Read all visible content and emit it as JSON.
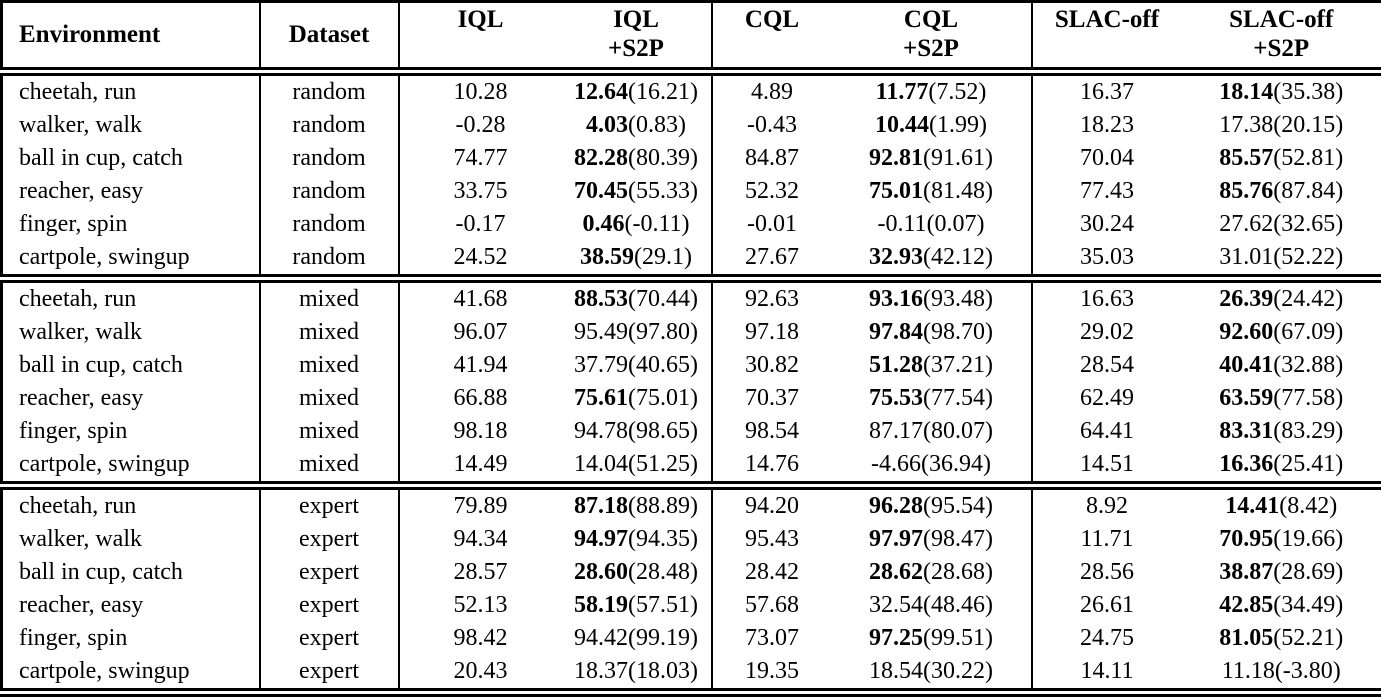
{
  "colors": {
    "text": "#000000",
    "background": "#ffffff",
    "border": "#000000"
  },
  "table": {
    "headers": {
      "environment": "Environment",
      "dataset": "Dataset",
      "iql": {
        "line1": "IQL",
        "line2": ""
      },
      "iql_s2p": {
        "line1": "IQL",
        "line2": "+S2P"
      },
      "cql": {
        "line1": "CQL",
        "line2": ""
      },
      "cql_s2p": {
        "line1": "CQL",
        "line2": "+S2P"
      },
      "slac": {
        "line1": "SLAC-off",
        "line2": ""
      },
      "slac_s2p": {
        "line1": "SLAC-off",
        "line2": "+S2P"
      }
    },
    "rows": [
      {
        "env": "cheetah, run",
        "dataset": "random",
        "iql": "10.28",
        "iql_s2p": {
          "value": "12.64",
          "paren": "(16.21)",
          "bold": true
        },
        "cql": "4.89",
        "cql_s2p": {
          "value": "11.77",
          "paren": "(7.52)",
          "bold": true
        },
        "slac": "16.37",
        "slac_s2p": {
          "value": "18.14",
          "paren": "(35.38)",
          "bold": true
        },
        "block_end": false
      },
      {
        "env": "walker, walk",
        "dataset": "random",
        "iql": "-0.28",
        "iql_s2p": {
          "value": "4.03",
          "paren": "(0.83)",
          "bold": true
        },
        "cql": "-0.43",
        "cql_s2p": {
          "value": "10.44",
          "paren": "(1.99)",
          "bold": true
        },
        "slac": "18.23",
        "slac_s2p": {
          "value": "17.38",
          "paren": "(20.15)",
          "bold": false
        },
        "block_end": false
      },
      {
        "env": "ball in cup, catch",
        "dataset": "random",
        "iql": "74.77",
        "iql_s2p": {
          "value": "82.28",
          "paren": "(80.39)",
          "bold": true
        },
        "cql": "84.87",
        "cql_s2p": {
          "value": "92.81",
          "paren": "(91.61)",
          "bold": true
        },
        "slac": "70.04",
        "slac_s2p": {
          "value": "85.57",
          "paren": "(52.81)",
          "bold": true
        },
        "block_end": false
      },
      {
        "env": "reacher, easy",
        "dataset": "random",
        "iql": "33.75",
        "iql_s2p": {
          "value": "70.45",
          "paren": "(55.33)",
          "bold": true
        },
        "cql": "52.32",
        "cql_s2p": {
          "value": "75.01",
          "paren": "(81.48)",
          "bold": true
        },
        "slac": "77.43",
        "slac_s2p": {
          "value": "85.76",
          "paren": "(87.84)",
          "bold": true
        },
        "block_end": false
      },
      {
        "env": "finger, spin",
        "dataset": "random",
        "iql": "-0.17",
        "iql_s2p": {
          "value": "0.46",
          "paren": "(-0.11)",
          "bold": true
        },
        "cql": "-0.01",
        "cql_s2p": {
          "value": "-0.11",
          "paren": "(0.07)",
          "bold": false
        },
        "slac": "30.24",
        "slac_s2p": {
          "value": "27.62",
          "paren": "(32.65)",
          "bold": false
        },
        "block_end": false
      },
      {
        "env": "cartpole, swingup",
        "dataset": "random",
        "iql": "24.52",
        "iql_s2p": {
          "value": "38.59",
          "paren": "(29.1)",
          "bold": true
        },
        "cql": "27.67",
        "cql_s2p": {
          "value": "32.93",
          "paren": "(42.12)",
          "bold": true
        },
        "slac": "35.03",
        "slac_s2p": {
          "value": "31.01",
          "paren": "(52.22)",
          "bold": false
        },
        "block_end": true
      },
      {
        "env": "cheetah, run",
        "dataset": "mixed",
        "iql": "41.68",
        "iql_s2p": {
          "value": "88.53",
          "paren": "(70.44)",
          "bold": true
        },
        "cql": "92.63",
        "cql_s2p": {
          "value": "93.16",
          "paren": "(93.48)",
          "bold": true
        },
        "slac": "16.63",
        "slac_s2p": {
          "value": "26.39",
          "paren": "(24.42)",
          "bold": true
        },
        "block_end": false
      },
      {
        "env": "walker, walk",
        "dataset": "mixed",
        "iql": "96.07",
        "iql_s2p": {
          "value": "95.49",
          "paren": "(97.80)",
          "bold": false
        },
        "cql": "97.18",
        "cql_s2p": {
          "value": "97.84",
          "paren": "(98.70)",
          "bold": true
        },
        "slac": "29.02",
        "slac_s2p": {
          "value": "92.60",
          "paren": "(67.09)",
          "bold": true
        },
        "block_end": false
      },
      {
        "env": "ball in cup, catch",
        "dataset": "mixed",
        "iql": "41.94",
        "iql_s2p": {
          "value": "37.79",
          "paren": "(40.65)",
          "bold": false
        },
        "cql": "30.82",
        "cql_s2p": {
          "value": "51.28",
          "paren": "(37.21)",
          "bold": true
        },
        "slac": "28.54",
        "slac_s2p": {
          "value": "40.41",
          "paren": "(32.88)",
          "bold": true
        },
        "block_end": false
      },
      {
        "env": "reacher, easy",
        "dataset": "mixed",
        "iql": "66.88",
        "iql_s2p": {
          "value": "75.61",
          "paren": "(75.01)",
          "bold": true
        },
        "cql": "70.37",
        "cql_s2p": {
          "value": "75.53",
          "paren": "(77.54)",
          "bold": true
        },
        "slac": "62.49",
        "slac_s2p": {
          "value": "63.59",
          "paren": "(77.58)",
          "bold": true
        },
        "block_end": false
      },
      {
        "env": "finger, spin",
        "dataset": "mixed",
        "iql": "98.18",
        "iql_s2p": {
          "value": "94.78",
          "paren": "(98.65)",
          "bold": false
        },
        "cql": "98.54",
        "cql_s2p": {
          "value": "87.17",
          "paren": "(80.07)",
          "bold": false
        },
        "slac": "64.41",
        "slac_s2p": {
          "value": "83.31",
          "paren": "(83.29)",
          "bold": true
        },
        "block_end": false
      },
      {
        "env": "cartpole, swingup",
        "dataset": "mixed",
        "iql": "14.49",
        "iql_s2p": {
          "value": "14.04",
          "paren": "(51.25)",
          "bold": false
        },
        "cql": "14.76",
        "cql_s2p": {
          "value": "-4.66",
          "paren": "(36.94)",
          "bold": false
        },
        "slac": "14.51",
        "slac_s2p": {
          "value": "16.36",
          "paren": "(25.41)",
          "bold": true
        },
        "block_end": true
      },
      {
        "env": "cheetah, run",
        "dataset": "expert",
        "iql": "79.89",
        "iql_s2p": {
          "value": "87.18",
          "paren": "(88.89)",
          "bold": true
        },
        "cql": "94.20",
        "cql_s2p": {
          "value": "96.28",
          "paren": "(95.54)",
          "bold": true
        },
        "slac": "8.92",
        "slac_s2p": {
          "value": "14.41",
          "paren": "(8.42)",
          "bold": true
        },
        "block_end": false
      },
      {
        "env": "walker, walk",
        "dataset": "expert",
        "iql": "94.34",
        "iql_s2p": {
          "value": "94.97",
          "paren": "(94.35)",
          "bold": true
        },
        "cql": "95.43",
        "cql_s2p": {
          "value": "97.97",
          "paren": "(98.47)",
          "bold": true
        },
        "slac": "11.71",
        "slac_s2p": {
          "value": "70.95",
          "paren": "(19.66)",
          "bold": true
        },
        "block_end": false
      },
      {
        "env": "ball in cup, catch",
        "dataset": "expert",
        "iql": "28.57",
        "iql_s2p": {
          "value": "28.60",
          "paren": "(28.48)",
          "bold": true
        },
        "cql": "28.42",
        "cql_s2p": {
          "value": "28.62",
          "paren": "(28.68)",
          "bold": true
        },
        "slac": "28.56",
        "slac_s2p": {
          "value": "38.87",
          "paren": "(28.69)",
          "bold": true
        },
        "block_end": false
      },
      {
        "env": "reacher, easy",
        "dataset": "expert",
        "iql": "52.13",
        "iql_s2p": {
          "value": "58.19",
          "paren": "(57.51)",
          "bold": true
        },
        "cql": "57.68",
        "cql_s2p": {
          "value": "32.54",
          "paren": "(48.46)",
          "bold": false
        },
        "slac": "26.61",
        "slac_s2p": {
          "value": "42.85",
          "paren": "(34.49)",
          "bold": true
        },
        "block_end": false
      },
      {
        "env": "finger, spin",
        "dataset": "expert",
        "iql": "98.42",
        "iql_s2p": {
          "value": "94.42",
          "paren": "(99.19)",
          "bold": false
        },
        "cql": "73.07",
        "cql_s2p": {
          "value": "97.25",
          "paren": "(99.51)",
          "bold": true
        },
        "slac": "24.75",
        "slac_s2p": {
          "value": "81.05",
          "paren": "(52.21)",
          "bold": true
        },
        "block_end": false
      },
      {
        "env": "cartpole, swingup",
        "dataset": "expert",
        "iql": "20.43",
        "iql_s2p": {
          "value": "18.37",
          "paren": "(18.03)",
          "bold": false
        },
        "cql": "19.35",
        "cql_s2p": {
          "value": "18.54",
          "paren": "(30.22)",
          "bold": false
        },
        "slac": "14.11",
        "slac_s2p": {
          "value": "11.18",
          "paren": "(-3.80)",
          "bold": false
        },
        "block_end": true
      }
    ]
  }
}
